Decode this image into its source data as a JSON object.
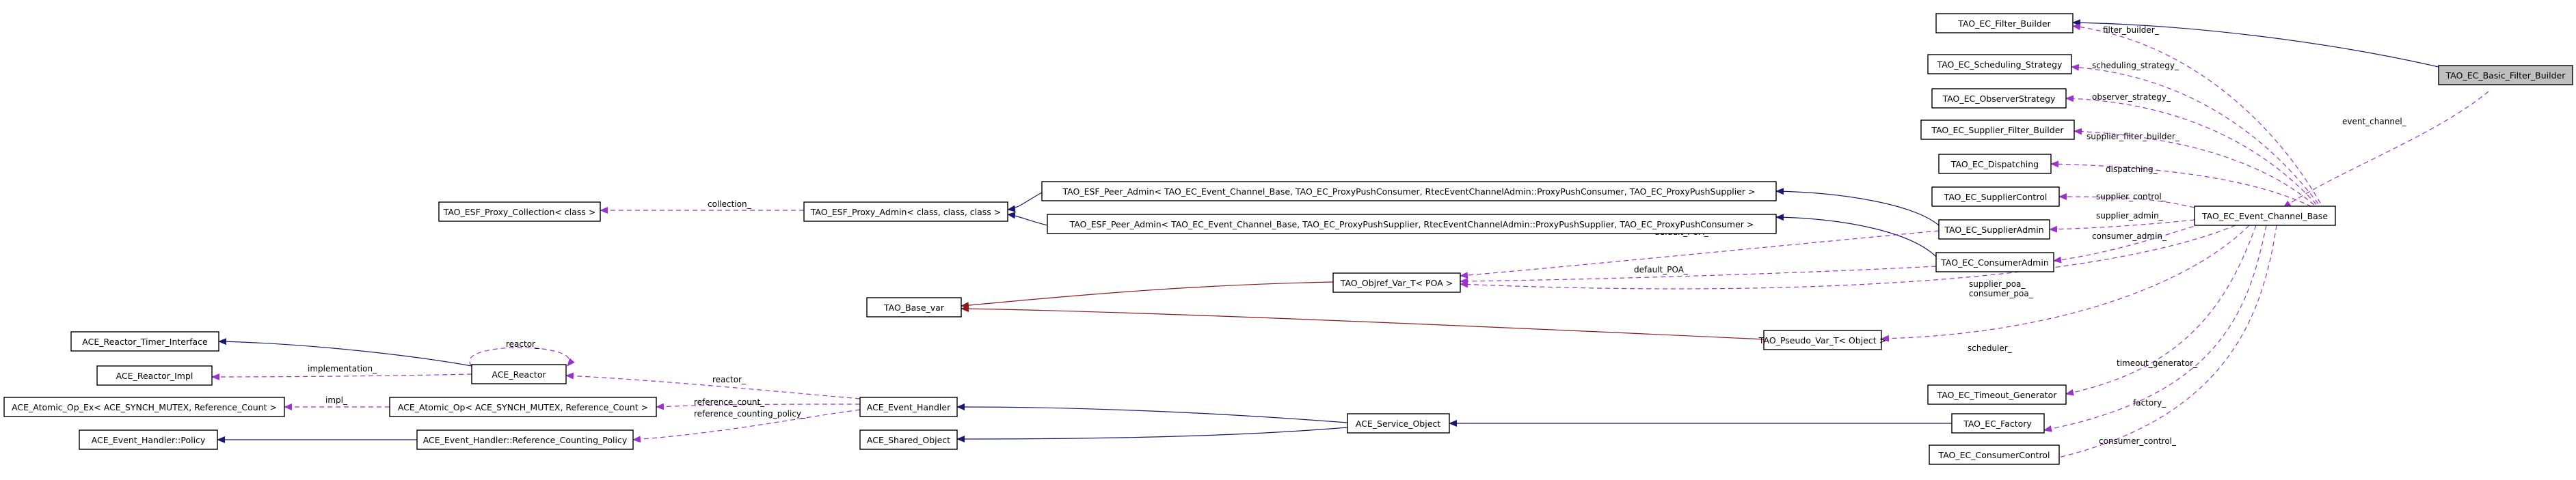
{
  "diagram": {
    "nodes": {
      "basic_filter_builder": "TAO_EC_Basic_Filter_Builder",
      "filter_builder": "TAO_EC_Filter_Builder",
      "scheduling_strategy": "TAO_EC_Scheduling_Strategy",
      "observer_strategy": "TAO_EC_ObserverStrategy",
      "supplier_filter_builder": "TAO_EC_Supplier_Filter_Builder",
      "dispatching": "TAO_EC_Dispatching",
      "supplier_control": "TAO_EC_SupplierControl",
      "supplier_admin": "TAO_EC_SupplierAdmin",
      "consumer_admin": "TAO_EC_ConsumerAdmin",
      "event_channel_base": "TAO_EC_Event_Channel_Base",
      "peer_admin_consumer": "TAO_ESF_Peer_Admin< TAO_EC_Event_Channel_Base, TAO_EC_ProxyPushConsumer, RtecEventChannelAdmin::ProxyPushConsumer, TAO_EC_ProxyPushSupplier >",
      "peer_admin_supplier": "TAO_ESF_Peer_Admin< TAO_EC_Event_Channel_Base, TAO_EC_ProxyPushSupplier, RtecEventChannelAdmin::ProxyPushSupplier, TAO_EC_ProxyPushConsumer >",
      "proxy_admin": "TAO_ESF_Proxy_Admin< class, class, class >",
      "proxy_collection": "TAO_ESF_Proxy_Collection< class >",
      "objref_var_poa": "TAO_Objref_Var_T< POA >",
      "base_var": "TAO_Base_var",
      "pseudo_var": "TAO_Pseudo_Var_T< Object >",
      "timeout_generator": "TAO_EC_Timeout_Generator",
      "factory": "TAO_EC_Factory",
      "consumer_control": "TAO_EC_ConsumerControl",
      "reactor_timer_interface": "ACE_Reactor_Timer_Interface",
      "reactor_impl": "ACE_Reactor_Impl",
      "reactor": "ACE_Reactor",
      "atomic_op_ex": "ACE_Atomic_Op_Ex< ACE_SYNCH_MUTEX, Reference_Count >",
      "atomic_op": "ACE_Atomic_Op< ACE_SYNCH_MUTEX, Reference_Count >",
      "event_handler": "ACE_Event_Handler",
      "event_handler_policy": "ACE_Event_Handler::Policy",
      "ref_counting_policy": "ACE_Event_Handler::Reference_Counting_Policy",
      "service_object": "ACE_Service_Object",
      "shared_object": "ACE_Shared_Object"
    },
    "edge_labels": {
      "event_channel": "event_channel_",
      "filter_builder": "filter_builder_",
      "scheduling_strategy": "scheduling_strategy_",
      "observer_strategy": "observer_strategy_",
      "supplier_filter_builder": "supplier_filter_builder_",
      "dispatching": "dispatching_",
      "supplier_control": "supplier_control_",
      "supplier_admin": "supplier_admin_",
      "consumer_admin": "consumer_admin_",
      "default_poa_1": "default_POA_",
      "default_poa_2": "default_POA_",
      "supplier_poa": "supplier_poa_",
      "consumer_poa": "consumer_poa_",
      "scheduler": "scheduler_",
      "timeout_generator": "timeout_generator_",
      "factory": "factory_",
      "consumer_control": "consumer_control_",
      "collection": "collection_",
      "reactor_self": "reactor_",
      "implementation": "implementation_",
      "reactor": "reactor_",
      "impl": "impl_",
      "reference_count": "reference_count_",
      "reference_counting_policy": "reference_counting_policy_"
    }
  }
}
